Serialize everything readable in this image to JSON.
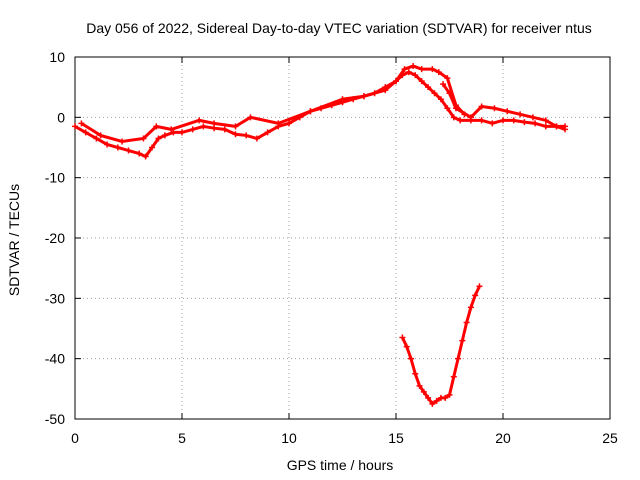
{
  "chart_data": {
    "type": "scatter",
    "title": "Day 056 of 2022, Sidereal Day-to-day VTEC variation (SDTVAR) for receiver ntus",
    "xlabel": "GPS time / hours",
    "ylabel": "SDTVAR / TECUs",
    "xlim": [
      0,
      25
    ],
    "ylim": [
      -50,
      10
    ],
    "xticks": [
      "0",
      "5",
      "10",
      "15",
      "20",
      "25"
    ],
    "yticks": [
      "10",
      "0",
      "-10",
      "-20",
      "-30",
      "-40",
      "-50"
    ],
    "grid": true,
    "marker": "plus",
    "series_color": "#ff0000",
    "series": [
      {
        "name": "main",
        "x": [
          0.0,
          0.5,
          1.0,
          1.5,
          2.0,
          2.5,
          3.0,
          3.3,
          3.6,
          3.9,
          4.2,
          4.6,
          5.0,
          5.5,
          6.0,
          6.5,
          7.0,
          7.5,
          8.0,
          8.5,
          9.0,
          9.5,
          10.0,
          10.5,
          11.0,
          11.5,
          12.0,
          12.5,
          13.0,
          13.5,
          14.0,
          14.5,
          15.0,
          15.3,
          15.6,
          15.9,
          16.2,
          16.5,
          16.8,
          17.1,
          17.4,
          17.7,
          18.0,
          18.5,
          19.0,
          19.5,
          20.0,
          20.5,
          21.0,
          21.5,
          22.0,
          22.5,
          22.9
        ],
        "y": [
          -1.5,
          -2.5,
          -3.5,
          -4.5,
          -5.0,
          -5.5,
          -6.0,
          -6.5,
          -5.0,
          -3.5,
          -3.0,
          -2.5,
          -2.5,
          -2.0,
          -1.5,
          -1.8,
          -2.0,
          -2.8,
          -3.0,
          -3.5,
          -2.5,
          -1.5,
          -1.0,
          0.0,
          1.0,
          1.5,
          2.0,
          2.5,
          3.0,
          3.5,
          4.0,
          5.0,
          6.0,
          7.0,
          7.5,
          7.0,
          6.0,
          5.0,
          4.0,
          3.0,
          1.5,
          0.0,
          -0.5,
          -0.5,
          -0.5,
          -1.0,
          -0.5,
          -0.5,
          -0.8,
          -1.0,
          -1.5,
          -1.5,
          -1.5
        ]
      },
      {
        "name": "main-upper",
        "x": [
          0.3,
          1.2,
          2.2,
          3.2,
          3.8,
          4.5,
          5.8,
          6.5,
          7.5,
          8.2,
          9.5,
          11.0,
          12.5,
          13.5,
          14.5,
          15.0,
          15.4,
          15.8,
          16.2,
          16.7,
          17.0,
          17.4,
          17.8,
          18.2
        ],
        "y": [
          -1.0,
          -3.0,
          -4.0,
          -3.5,
          -1.5,
          -2.0,
          -0.5,
          -1.0,
          -1.5,
          0.0,
          -1.0,
          1.0,
          3.0,
          3.5,
          4.5,
          6.0,
          8.0,
          8.5,
          8.0,
          8.0,
          7.5,
          6.5,
          2.0,
          0.5
        ]
      },
      {
        "name": "main-tail",
        "x": [
          17.2,
          17.5,
          17.8,
          18.5,
          19.0,
          19.6,
          20.2,
          20.8,
          21.4,
          22.0,
          22.5,
          22.9
        ],
        "y": [
          5.5,
          4.0,
          1.5,
          0.0,
          1.8,
          1.5,
          1.0,
          0.5,
          0.0,
          -0.5,
          -1.5,
          -2.0
        ]
      },
      {
        "name": "dip",
        "x": [
          15.3,
          15.5,
          15.7,
          15.9,
          16.1,
          16.3,
          16.5,
          16.7,
          16.9,
          17.1,
          17.3,
          17.5,
          17.7,
          17.9,
          18.1,
          18.3,
          18.5,
          18.7,
          18.9
        ],
        "y": [
          -36.5,
          -38.0,
          -40.0,
          -42.5,
          -44.5,
          -45.5,
          -46.5,
          -47.5,
          -47.0,
          -46.5,
          -46.5,
          -46.0,
          -43.0,
          -40.0,
          -37.0,
          -34.0,
          -31.5,
          -29.5,
          -28.0
        ]
      }
    ]
  }
}
